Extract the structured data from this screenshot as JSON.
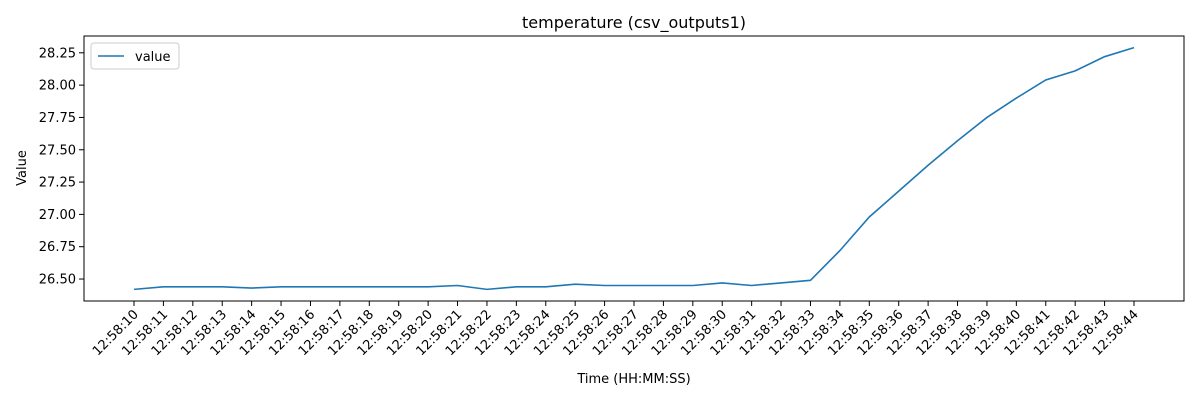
{
  "chart_data": {
    "type": "line",
    "title": "temperature (csv_outputs1)",
    "xlabel": "Time (HH:MM:SS)",
    "ylabel": "Value",
    "categories": [
      "12:58:10",
      "12:58:11",
      "12:58:12",
      "12:58:13",
      "12:58:14",
      "12:58:15",
      "12:58:16",
      "12:58:17",
      "12:58:18",
      "12:58:19",
      "12:58:20",
      "12:58:21",
      "12:58:22",
      "12:58:23",
      "12:58:24",
      "12:58:25",
      "12:58:26",
      "12:58:27",
      "12:58:28",
      "12:58:29",
      "12:58:30",
      "12:58:31",
      "12:58:32",
      "12:58:33",
      "12:58:34",
      "12:58:35",
      "12:58:36",
      "12:58:37",
      "12:58:38",
      "12:58:39",
      "12:58:40",
      "12:58:41",
      "12:58:42",
      "12:58:43",
      "12:58:44"
    ],
    "series": [
      {
        "name": "value",
        "color": "#1f77b4",
        "values": [
          26.42,
          26.44,
          26.44,
          26.44,
          26.43,
          26.44,
          26.44,
          26.44,
          26.44,
          26.44,
          26.44,
          26.45,
          26.42,
          26.44,
          26.44,
          26.46,
          26.45,
          26.45,
          26.45,
          26.45,
          26.47,
          26.45,
          26.47,
          26.49,
          26.72,
          26.98,
          27.18,
          27.38,
          27.57,
          27.75,
          27.9,
          28.04,
          28.11,
          28.22,
          28.29
        ]
      }
    ],
    "yticks": [
      "26.50",
      "26.75",
      "27.00",
      "27.25",
      "27.50",
      "27.75",
      "28.00",
      "28.25"
    ],
    "ylim": [
      26.33,
      28.38
    ],
    "grid": false,
    "legend": "top-left"
  }
}
